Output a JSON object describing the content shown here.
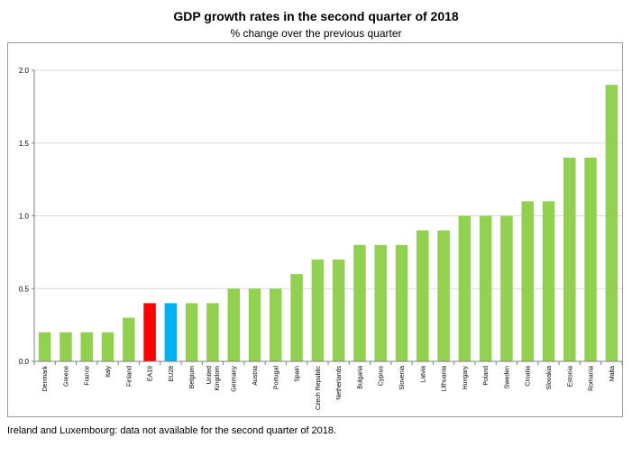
{
  "chart_data": {
    "type": "bar",
    "title": "GDP growth rates in the second quarter of 2018",
    "subtitle": "% change over the previous quarter",
    "xlabel": "",
    "ylabel": "",
    "ylim": [
      0,
      2.0
    ],
    "yticks": [
      "0.0",
      "0.5",
      "1.0",
      "1.5",
      "2.0"
    ],
    "ytick_values": [
      0,
      0.5,
      1.0,
      1.5,
      2.0
    ],
    "grid": true,
    "legend": "none",
    "categories": [
      "Denmark",
      "Greece",
      "France",
      "Italy",
      "Finland",
      "EA19",
      "EU28",
      "Belgium",
      "United Kingdom",
      "Germany",
      "Austria",
      "Portugal",
      "Spain",
      "Czech Republic",
      "Netherlands",
      "Bulgaria",
      "Cyprus",
      "Slovenia",
      "Latvia",
      "Lithuania",
      "Hungary",
      "Poland",
      "Sweden",
      "Croatia",
      "Slovakia",
      "Estonia",
      "Romania",
      "Malta"
    ],
    "values": [
      0.2,
      0.2,
      0.2,
      0.2,
      0.3,
      0.4,
      0.4,
      0.4,
      0.4,
      0.5,
      0.5,
      0.5,
      0.6,
      0.7,
      0.7,
      0.8,
      0.8,
      0.8,
      0.9,
      0.9,
      1.0,
      1.0,
      1.0,
      1.1,
      1.1,
      1.4,
      1.4,
      1.9
    ],
    "colors": {
      "default": "#92d050",
      "EA19": "#ff0000",
      "EU28": "#00b0f0",
      "grid": "#d9d9d9",
      "axis": "#808080"
    },
    "footnote": "Ireland and Luxembourg: data not available for the second quarter of 2018."
  }
}
